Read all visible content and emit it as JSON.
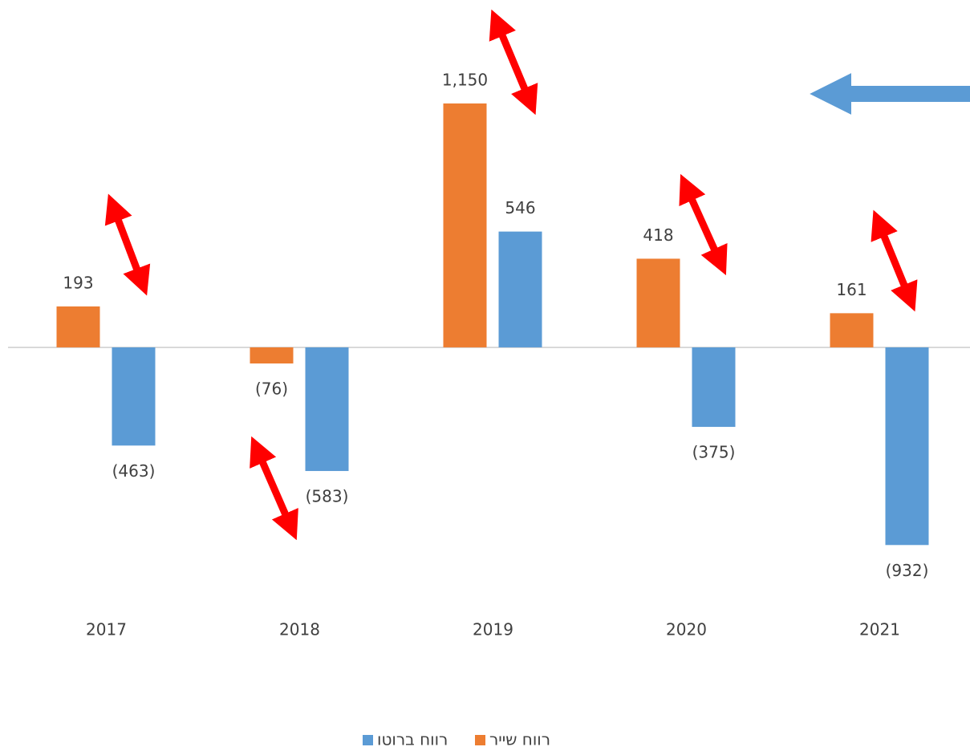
{
  "chart_data": {
    "type": "bar",
    "categories": [
      "2017",
      "2018",
      "2019",
      "2020",
      "2021"
    ],
    "series": [
      {
        "name": "רווח שייר",
        "color": "#ed7d31",
        "values": [
          193,
          -76,
          1150,
          418,
          161
        ],
        "value_labels": [
          "193",
          "(76)",
          "1,150",
          "418",
          "161"
        ]
      },
      {
        "name": "רווח ברוטו",
        "color": "#5b9bd5",
        "values": [
          -463,
          -583,
          546,
          -375,
          -932
        ],
        "value_labels": [
          "(463)",
          "(583)",
          "546",
          "(375)",
          "(932)"
        ]
      }
    ],
    "ylim": [
      -1400,
      1600
    ]
  }
}
